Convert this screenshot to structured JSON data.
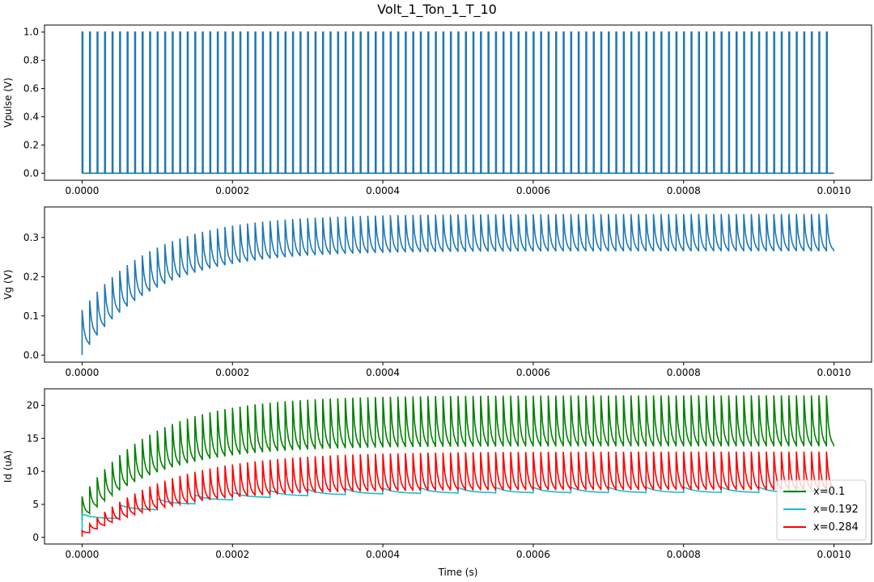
{
  "figure_title": "Volt_1_Ton_1_T_10",
  "chart_data": [
    {
      "type": "line",
      "title": "",
      "xlabel": "",
      "ylabel": "Vpulse (V)",
      "xlim": [
        -5e-05,
        0.00105
      ],
      "ylim": [
        -0.05,
        1.05
      ],
      "x_ticks": [
        0.0,
        0.0002,
        0.0004,
        0.0006,
        0.0008,
        0.001
      ],
      "x_tick_labels": [
        "0.0000",
        "0.0002",
        "0.0004",
        "0.0006",
        "0.0008",
        "0.0010"
      ],
      "y_ticks": [
        0.0,
        0.2,
        0.4,
        0.6,
        0.8,
        1.0
      ],
      "y_tick_labels": [
        "0.0",
        "0.2",
        "0.4",
        "0.6",
        "0.8",
        "1.0"
      ],
      "grid": false,
      "series": [
        {
          "color": "#1f77b4",
          "model": "pulse_train",
          "period": 1e-05,
          "t_on": 1e-06,
          "t_start": 0.0,
          "t_end": 0.001,
          "low": 0.0,
          "high": 1.0
        }
      ]
    },
    {
      "type": "line",
      "title": "",
      "xlabel": "",
      "ylabel": "Vg (V)",
      "xlim": [
        -5e-05,
        0.00105
      ],
      "ylim": [
        -0.018,
        0.378
      ],
      "x_ticks": [
        0.0,
        0.0002,
        0.0004,
        0.0006,
        0.0008,
        0.001
      ],
      "x_tick_labels": [
        "0.0000",
        "0.0002",
        "0.0004",
        "0.0006",
        "0.0008",
        "0.0010"
      ],
      "y_ticks": [
        0.0,
        0.1,
        0.2,
        0.3
      ],
      "y_tick_labels": [
        "0.0",
        "0.1",
        "0.2",
        "0.3"
      ],
      "grid": false,
      "series": [
        {
          "color": "#1f77b4",
          "model": "charging_sawtooth",
          "period": 1e-05,
          "t_start": 0.0,
          "t_end": 0.001,
          "base_start": 0.0,
          "base_final": 0.265,
          "spike_start": 0.115,
          "spike_final": 0.36,
          "tau": 9.5e-05
        }
      ]
    },
    {
      "type": "line",
      "title": "",
      "xlabel": "Time (s)",
      "ylabel": "Id (uA)",
      "xlim": [
        -5e-05,
        0.00105
      ],
      "ylim": [
        -1.0,
        22.5
      ],
      "x_ticks": [
        0.0,
        0.0002,
        0.0004,
        0.0006,
        0.0008,
        0.001
      ],
      "x_tick_labels": [
        "0.0000",
        "0.0002",
        "0.0004",
        "0.0006",
        "0.0008",
        "0.0010"
      ],
      "y_ticks": [
        0,
        5,
        10,
        15,
        20
      ],
      "y_tick_labels": [
        "0",
        "5",
        "10",
        "15",
        "20"
      ],
      "grid": false,
      "legend_position": "lower right",
      "series": [
        {
          "name": "x=0.1",
          "color": "#008000",
          "model": "charging_sawtooth",
          "period": 1e-05,
          "t_start": 0.0,
          "t_end": 0.001,
          "base_start": 2.5,
          "base_final": 13.8,
          "spike_start": 6.2,
          "spike_final": 21.5,
          "tau": 9.5e-05
        },
        {
          "name": "x=0.192",
          "color": "#17becf",
          "model": "charging_sawtooth",
          "period": 5e-05,
          "t_start": 0.0,
          "t_end": 0.001,
          "base_start": 0.8,
          "base_final": 6.8,
          "spike_start": 3.5,
          "spike_final": 7.6,
          "tau": 0.00012
        },
        {
          "name": "x=0.284",
          "color": "#ff0000",
          "model": "charging_sawtooth",
          "period": 1e-05,
          "t_start": 0.0,
          "t_end": 0.001,
          "base_start": 0.1,
          "base_final": 7.2,
          "spike_start": 1.0,
          "spike_final": 13.0,
          "tau": 0.00011
        }
      ]
    }
  ]
}
